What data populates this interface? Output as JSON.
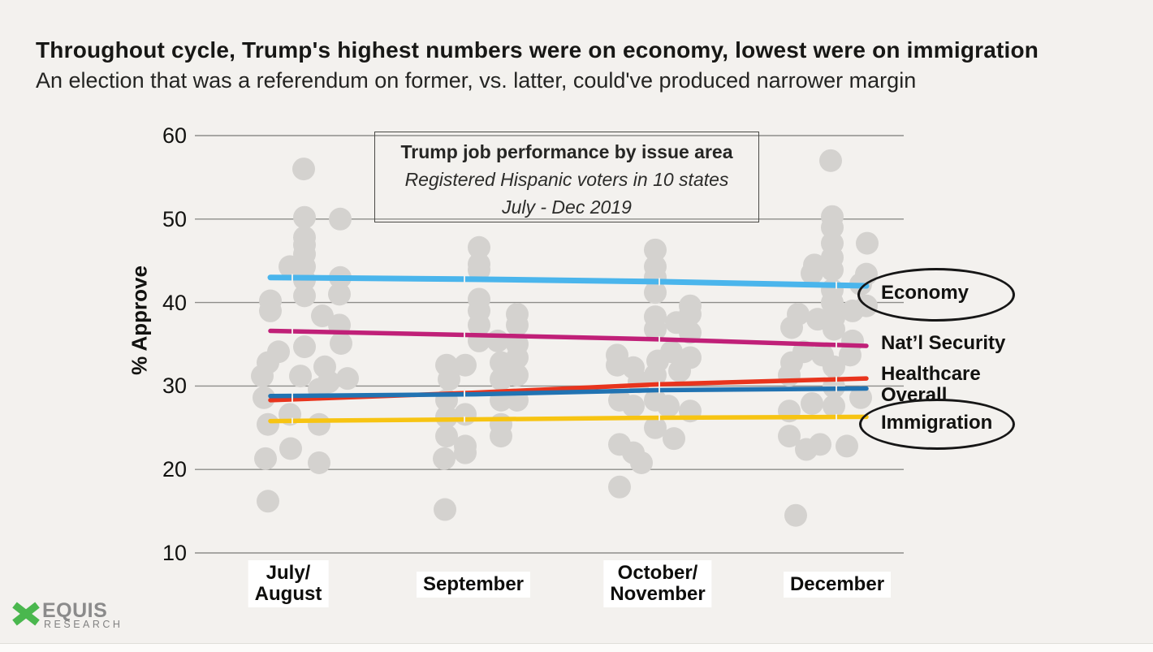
{
  "page": {
    "title": "Throughout cycle, Trump's highest numbers were on economy, lowest were on immigration",
    "subtitle": "An election that was a referendum on former, vs. latter, could've produced narrower margin",
    "background": "#f3f1ee"
  },
  "logo": {
    "name": "EQUIS",
    "sub": "RESEARCH",
    "green": "#4ab74e",
    "gray": "#8b8b8b"
  },
  "chart_data": {
    "type": "scatter",
    "title": "Trump job performance by issue area",
    "subtitle1": "Registered Hispanic voters in 10 states",
    "subtitle2": "July - Dec 2019",
    "ylabel": "% Approve",
    "ylim": [
      10,
      60
    ],
    "y_ticks": [
      60,
      50,
      40,
      30,
      20,
      10
    ],
    "grid": true,
    "x_categories": [
      "July/\nAugust",
      "September",
      "October/\nNovember",
      "December"
    ],
    "series": [
      {
        "label": "Economy",
        "color": "#4ab5ec",
        "width": 7,
        "circled": true,
        "x": [
          "July/August",
          "September",
          "October/November",
          "December"
        ],
        "values": [
          43.0,
          42.8,
          42.5,
          42.0
        ],
        "points": [
          [
            333,
            43.0
          ],
          [
            585,
            42.8
          ],
          [
            810,
            42.5
          ],
          [
            1067,
            42.0
          ]
        ]
      },
      {
        "label": "Nat’l Security",
        "color": "#c02078",
        "width": 5.5,
        "circled": false,
        "x": [
          "July/August",
          "September",
          "October/November",
          "December"
        ],
        "values": [
          36.6,
          36.1,
          35.6,
          34.8
        ],
        "points": [
          [
            333,
            36.6
          ],
          [
            585,
            36.1
          ],
          [
            810,
            35.6
          ],
          [
            1067,
            34.8
          ]
        ]
      },
      {
        "label": "Healthcare",
        "color": "#e8341d",
        "width": 5.5,
        "circled": false,
        "x": [
          "July/August",
          "September",
          "October/November",
          "December"
        ],
        "values": [
          28.3,
          29.2,
          30.2,
          30.9
        ],
        "points": [
          [
            333,
            28.3
          ],
          [
            585,
            29.2
          ],
          [
            810,
            30.2
          ],
          [
            1067,
            30.9
          ]
        ]
      },
      {
        "label": "Overall",
        "color": "#2173b2",
        "width": 5.5,
        "circled": false,
        "x": [
          "July/August",
          "September",
          "October/November",
          "December"
        ],
        "values": [
          28.8,
          29.0,
          29.5,
          29.7
        ],
        "points": [
          [
            333,
            28.8
          ],
          [
            585,
            29.0
          ],
          [
            810,
            29.5
          ],
          [
            1067,
            29.7
          ]
        ]
      },
      {
        "label": "Immigration",
        "color": "#f7c412",
        "width": 5.5,
        "circled": true,
        "x": [
          "July/August",
          "September",
          "October/November",
          "December"
        ],
        "values": [
          25.8,
          26.0,
          26.2,
          26.3
        ],
        "points": [
          [
            333,
            25.8
          ],
          [
            585,
            26.0
          ],
          [
            810,
            26.2
          ],
          [
            1067,
            26.3
          ]
        ]
      }
    ],
    "scatter": {
      "color": "#d4d2cf",
      "radius": 14,
      "points_by_period": {
        "july_august": [
          [
            374,
            56.0
          ],
          [
            375,
            50.2
          ],
          [
            419,
            50.0
          ],
          [
            375,
            47.8
          ],
          [
            375,
            46.9
          ],
          [
            375,
            45.8
          ],
          [
            357,
            44.3
          ],
          [
            375,
            44.3
          ],
          [
            419,
            43.0
          ],
          [
            375,
            42.7
          ],
          [
            333,
            40.2
          ],
          [
            375,
            40.8
          ],
          [
            418,
            41.0
          ],
          [
            333,
            39.0
          ],
          [
            397,
            38.4
          ],
          [
            418,
            37.3
          ],
          [
            375,
            34.7
          ],
          [
            420,
            35.1
          ],
          [
            343,
            34.1
          ],
          [
            330,
            32.8
          ],
          [
            400,
            32.3
          ],
          [
            370,
            31.2
          ],
          [
            428,
            30.9
          ],
          [
            323,
            31.2
          ],
          [
            325,
            28.6
          ],
          [
            393,
            29.6
          ],
          [
            405,
            30.5
          ],
          [
            357,
            26.6
          ],
          [
            330,
            25.4
          ],
          [
            393,
            25.4
          ],
          [
            358,
            22.5
          ],
          [
            327,
            21.3
          ],
          [
            393,
            20.8
          ],
          [
            330,
            16.2
          ]
        ],
        "september": [
          [
            590,
            46.6
          ],
          [
            590,
            44.6
          ],
          [
            590,
            43.9
          ],
          [
            590,
            40.4
          ],
          [
            590,
            39.0
          ],
          [
            590,
            37.3
          ],
          [
            637,
            38.6
          ],
          [
            637,
            37.3
          ],
          [
            613,
            35.4
          ],
          [
            590,
            35.4
          ],
          [
            637,
            35.0
          ],
          [
            550,
            32.5
          ],
          [
            573,
            32.5
          ],
          [
            617,
            32.8
          ],
          [
            637,
            33.4
          ],
          [
            553,
            30.8
          ],
          [
            617,
            30.8
          ],
          [
            637,
            31.3
          ],
          [
            550,
            28.3
          ],
          [
            617,
            28.3
          ],
          [
            637,
            28.3
          ],
          [
            550,
            26.3
          ],
          [
            573,
            26.6
          ],
          [
            617,
            25.4
          ],
          [
            550,
            24.0
          ],
          [
            617,
            24.0
          ],
          [
            573,
            22.8
          ],
          [
            547,
            21.3
          ],
          [
            573,
            22.0
          ],
          [
            548,
            15.2
          ]
        ],
        "october_november": [
          [
            807,
            46.3
          ],
          [
            807,
            44.3
          ],
          [
            807,
            43.0
          ],
          [
            807,
            41.2
          ],
          [
            850,
            39.6
          ],
          [
            850,
            38.6
          ],
          [
            807,
            38.3
          ],
          [
            833,
            37.6
          ],
          [
            807,
            36.8
          ],
          [
            850,
            36.4
          ],
          [
            827,
            34.1
          ],
          [
            850,
            33.4
          ],
          [
            760,
            33.7
          ],
          [
            760,
            32.5
          ],
          [
            780,
            32.2
          ],
          [
            810,
            33.0
          ],
          [
            807,
            31.3
          ],
          [
            837,
            31.8
          ],
          [
            787,
            30.5
          ],
          [
            807,
            28.3
          ],
          [
            763,
            28.3
          ],
          [
            780,
            27.6
          ],
          [
            823,
            27.6
          ],
          [
            850,
            27.0
          ],
          [
            807,
            25.0
          ],
          [
            830,
            23.7
          ],
          [
            763,
            23.0
          ],
          [
            780,
            22.0
          ],
          [
            790,
            20.8
          ],
          [
            763,
            17.9
          ]
        ],
        "december": [
          [
            1023,
            57.0
          ],
          [
            1025,
            50.3
          ],
          [
            1025,
            49.0
          ],
          [
            1025,
            47.1
          ],
          [
            1068,
            47.1
          ],
          [
            1025,
            45.4
          ],
          [
            1003,
            44.5
          ],
          [
            1000,
            43.5
          ],
          [
            1025,
            43.9
          ],
          [
            1067,
            43.4
          ],
          [
            1060,
            42.2
          ],
          [
            1025,
            41.5
          ],
          [
            1025,
            40.0
          ],
          [
            983,
            38.6
          ],
          [
            1007,
            38.0
          ],
          [
            1027,
            38.2
          ],
          [
            1050,
            39.0
          ],
          [
            1067,
            39.6
          ],
          [
            975,
            37.0
          ],
          [
            1027,
            36.8
          ],
          [
            1050,
            35.4
          ],
          [
            990,
            34.1
          ],
          [
            1013,
            33.7
          ],
          [
            1047,
            33.7
          ],
          [
            975,
            32.8
          ],
          [
            1027,
            32.3
          ],
          [
            972,
            31.3
          ],
          [
            1027,
            29.9
          ],
          [
            1060,
            28.6
          ],
          [
            1000,
            27.9
          ],
          [
            972,
            27.0
          ],
          [
            1027,
            27.6
          ],
          [
            972,
            24.0
          ],
          [
            993,
            22.4
          ],
          [
            1010,
            23.0
          ],
          [
            1043,
            22.8
          ],
          [
            980,
            14.5
          ]
        ]
      }
    }
  }
}
